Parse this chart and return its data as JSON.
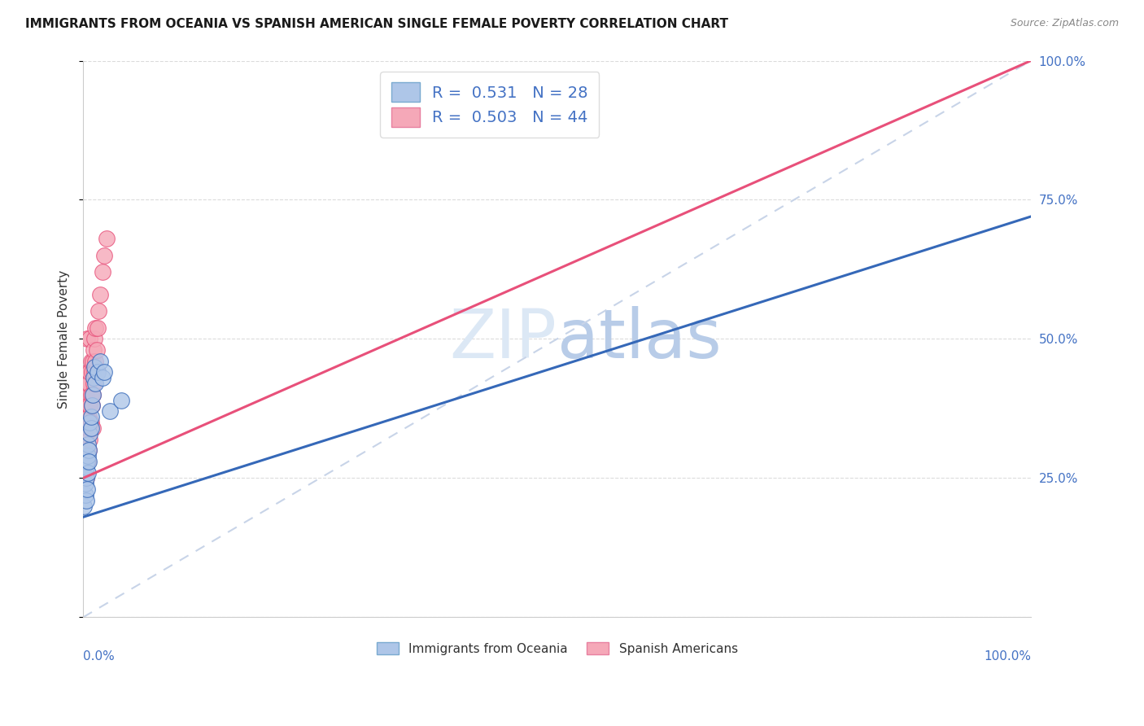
{
  "title": "IMMIGRANTS FROM OCEANIA VS SPANISH AMERICAN SINGLE FEMALE POVERTY CORRELATION CHART",
  "source": "Source: ZipAtlas.com",
  "ylabel": "Single Female Poverty",
  "legend_label1": "Immigrants from Oceania",
  "legend_label2": "Spanish Americans",
  "R1": 0.531,
  "N1": 28,
  "R2": 0.503,
  "N2": 44,
  "color_blue": "#aec6e8",
  "color_pink": "#f5a8b8",
  "color_blue_line": "#3568b8",
  "color_pink_line": "#e8507a",
  "color_diag": "#c8d4e8",
  "oceania_x": [
    0.001,
    0.002,
    0.002,
    0.003,
    0.003,
    0.003,
    0.004,
    0.004,
    0.005,
    0.005,
    0.005,
    0.006,
    0.006,
    0.007,
    0.007,
    0.008,
    0.008,
    0.009,
    0.01,
    0.011,
    0.012,
    0.013,
    0.015,
    0.018,
    0.02,
    0.022,
    0.028,
    0.04
  ],
  "oceania_y": [
    0.2,
    0.22,
    0.24,
    0.21,
    0.25,
    0.27,
    0.28,
    0.23,
    0.26,
    0.29,
    0.31,
    0.3,
    0.28,
    0.33,
    0.35,
    0.34,
    0.36,
    0.38,
    0.4,
    0.43,
    0.45,
    0.42,
    0.44,
    0.46,
    0.43,
    0.44,
    0.37,
    0.39
  ],
  "spanish_x": [
    0.001,
    0.001,
    0.002,
    0.002,
    0.002,
    0.003,
    0.003,
    0.003,
    0.004,
    0.004,
    0.004,
    0.005,
    0.005,
    0.005,
    0.005,
    0.006,
    0.006,
    0.006,
    0.007,
    0.007,
    0.007,
    0.007,
    0.008,
    0.008,
    0.008,
    0.009,
    0.009,
    0.01,
    0.01,
    0.01,
    0.011,
    0.011,
    0.012,
    0.012,
    0.013,
    0.013,
    0.014,
    0.015,
    0.015,
    0.016,
    0.018,
    0.02,
    0.022,
    0.025
  ],
  "spanish_y": [
    0.28,
    0.32,
    0.3,
    0.35,
    0.38,
    0.25,
    0.33,
    0.4,
    0.36,
    0.42,
    0.5,
    0.28,
    0.34,
    0.38,
    0.44,
    0.3,
    0.36,
    0.42,
    0.32,
    0.38,
    0.44,
    0.5,
    0.35,
    0.4,
    0.46,
    0.38,
    0.44,
    0.34,
    0.4,
    0.46,
    0.42,
    0.48,
    0.44,
    0.5,
    0.46,
    0.52,
    0.48,
    0.44,
    0.52,
    0.55,
    0.58,
    0.62,
    0.65,
    0.68
  ],
  "ylim": [
    0,
    1.0
  ],
  "xlim": [
    0,
    1.0
  ],
  "yticks": [
    0.0,
    0.25,
    0.5,
    0.75,
    1.0
  ],
  "ytick_labels": [
    "",
    "25.0%",
    "50.0%",
    "75.0%",
    "100.0%"
  ],
  "pink_line_x0": 0.0,
  "pink_line_y0": 0.25,
  "pink_line_x1": 1.0,
  "pink_line_y1": 1.0,
  "blue_line_x0": 0.0,
  "blue_line_y0": 0.18,
  "blue_line_x1": 1.0,
  "blue_line_y1": 0.72,
  "background_color": "#ffffff",
  "grid_color": "#d8d8d8"
}
